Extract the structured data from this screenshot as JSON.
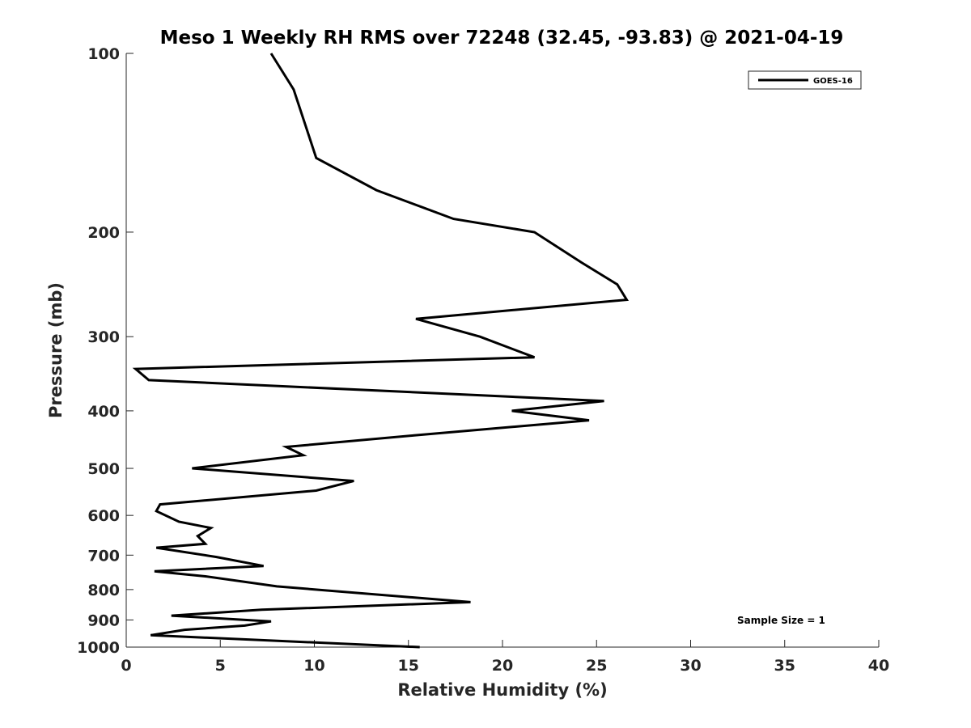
{
  "chart_data": {
    "type": "line",
    "title": "Meso 1 Weekly RH RMS over 72248 (32.45, -93.83) @ 2021-04-19",
    "xlabel": "Relative Humidity (%)",
    "ylabel": "Pressure (mb)",
    "xlim": [
      0,
      40
    ],
    "ylim": [
      100,
      1000
    ],
    "y_scale": "log",
    "y_reversed": true,
    "x_ticks": [
      0,
      5,
      10,
      15,
      20,
      25,
      30,
      35,
      40
    ],
    "y_ticks": [
      100,
      200,
      300,
      400,
      500,
      600,
      700,
      800,
      900,
      1000
    ],
    "grid": false,
    "legend_position": "top-right",
    "line_color": "#000000",
    "annotation": "Sample Size = 1",
    "series": [
      {
        "name": "GOES-16",
        "x": [
          7.7,
          8.9,
          10.1,
          13.3,
          17.4,
          21.7,
          24.2,
          26.1,
          26.6,
          15.4,
          18.8,
          21.7,
          0.5,
          1.2,
          25.4,
          20.5,
          24.6,
          15.3,
          8.5,
          9.4,
          3.5,
          12.1,
          10.1,
          1.8,
          1.6,
          2.8,
          4.5,
          3.8,
          4.2,
          1.6,
          4.8,
          7.3,
          1.5,
          4.2,
          8.0,
          18.3,
          7.2,
          2.4,
          7.7,
          6.3,
          3.1,
          1.3,
          15.6
        ],
        "y": [
          100,
          115,
          150,
          170,
          190,
          200,
          225,
          245,
          260,
          280,
          300,
          325,
          340,
          355,
          385,
          400,
          415,
          440,
          460,
          475,
          500,
          525,
          545,
          575,
          590,
          615,
          630,
          650,
          670,
          680,
          705,
          730,
          745,
          760,
          790,
          840,
          865,
          885,
          905,
          920,
          935,
          955,
          1000
        ]
      }
    ]
  }
}
